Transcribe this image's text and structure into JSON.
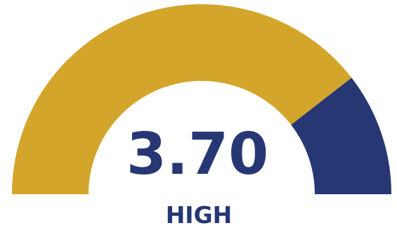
{
  "chart_data": {
    "type": "gauge",
    "value": 3.7,
    "value_label": "3.70",
    "category_label": "HIGH",
    "filled_fraction": 0.79,
    "colors": {
      "filled": "#D4A52B",
      "remaining": "#263774",
      "text": "#263774",
      "background": "#FFFFFF"
    }
  }
}
